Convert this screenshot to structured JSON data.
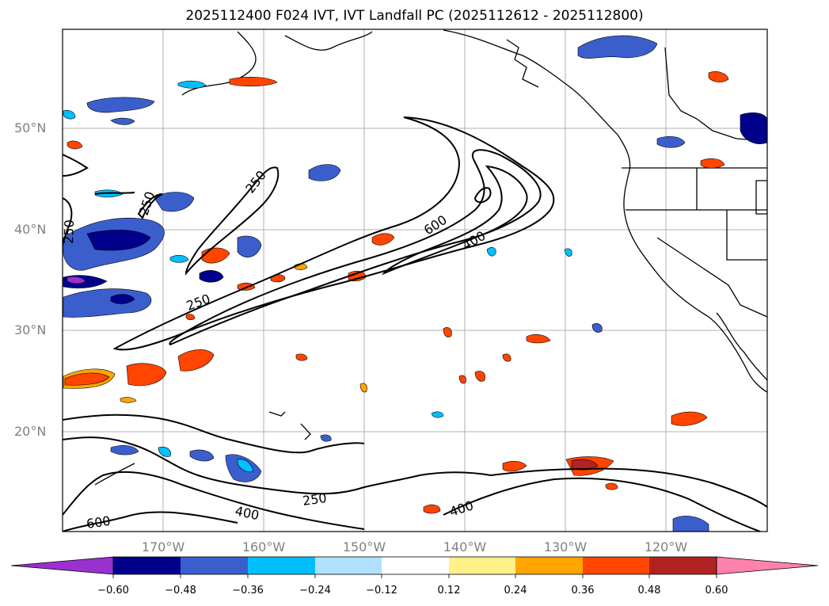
{
  "title": "2025112400 F024 IVT, IVT Landfall PC (2025112612 - 2025112800)",
  "lat_labels": [
    "50°N",
    "40°N",
    "30°N",
    "20°N"
  ],
  "lon_labels": [
    "170°W",
    "160°W",
    "150°W",
    "140°W",
    "130°W",
    "120°W"
  ],
  "contour_labels": [
    "250",
    "250",
    "250",
    "250",
    "600",
    "400",
    "400",
    "250",
    "400",
    "600"
  ],
  "colorbar": {
    "ticks": [
      "−0.60",
      "−0.48",
      "−0.36",
      "−0.24",
      "−0.12",
      "0.12",
      "0.24",
      "0.36",
      "0.48",
      "0.60"
    ],
    "colors": [
      "#9b30d0",
      "#00008b",
      "#3a5fcd",
      "#00bfff",
      "#b0e2ff",
      "#ffffff",
      "#fff08a",
      "#ffa500",
      "#ff4500",
      "#b22222",
      "#ff82ab",
      "#ff82ab"
    ]
  }
}
